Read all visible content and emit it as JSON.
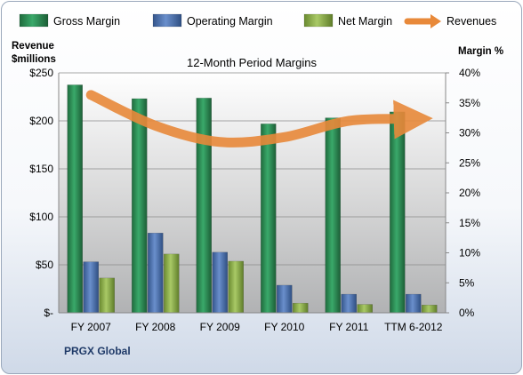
{
  "chart_data": {
    "type": "bar",
    "title": "12-Month Period Margins",
    "left_axis_title": [
      "Revenue",
      "$millions"
    ],
    "right_axis_title": "Margin %",
    "categories": [
      "FY 2007",
      "FY 2008",
      "FY 2009",
      "FY 2010",
      "FY 2011",
      "TTM 6-2012"
    ],
    "left_ticks": [
      "$-",
      "$50",
      "$100",
      "$150",
      "$200",
      "$250"
    ],
    "right_ticks": [
      "0%",
      "5%",
      "10%",
      "15%",
      "20%",
      "25%",
      "30%",
      "35%",
      "40%"
    ],
    "ylim_left": [
      0,
      250
    ],
    "ylim_right": [
      0,
      40
    ],
    "series": [
      {
        "name": "Gross Margin",
        "axis": "right",
        "values": [
          38.0,
          35.7,
          35.8,
          31.5,
          32.5,
          33.5
        ],
        "color": "#2e8b57"
      },
      {
        "name": "Operating Margin",
        "axis": "right",
        "values": [
          8.5,
          13.3,
          10.1,
          4.6,
          3.1,
          3.1
        ],
        "color": "#4a6fae"
      },
      {
        "name": "Net Margin",
        "axis": "right",
        "values": [
          5.8,
          9.8,
          8.6,
          1.6,
          1.4,
          1.3
        ],
        "color": "#8fb04a"
      },
      {
        "name": "Revenues",
        "axis": "left",
        "type": "line",
        "values": [
          227,
          195,
          178,
          183,
          200,
          202
        ],
        "color": "#e8893a"
      }
    ],
    "legend_position": "top",
    "grid": true
  },
  "footer_label": "PRGX Global"
}
